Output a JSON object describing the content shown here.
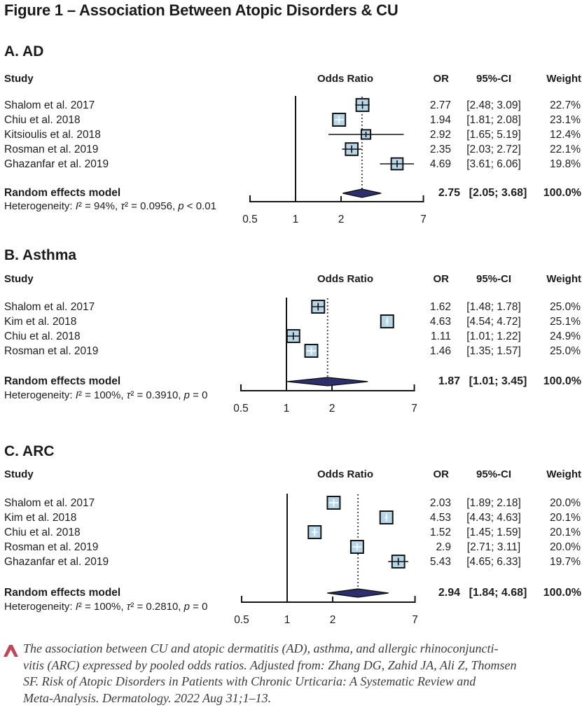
{
  "figure_title": "Figure 1 – Association Between Atopic Disorders & CU",
  "columns": {
    "study": "Study",
    "odds_ratio": "Odds Ratio",
    "or": "OR",
    "ci": "95%-CI",
    "weight": "Weight"
  },
  "chart_data": [
    {
      "type": "forest",
      "title": "A. AD",
      "xscale": "log",
      "xlim": [
        0.5,
        7
      ],
      "xticks": [
        0.5,
        1,
        2,
        7
      ],
      "ref_line": 1,
      "studies": [
        {
          "name": "Shalom et al. 2017",
          "or": 2.77,
          "ci_low": 2.48,
          "ci_high": 3.09,
          "weight": 22.7,
          "or_text": "2.77",
          "ci_text": "[2.48; 3.09]",
          "weight_text": "22.7%"
        },
        {
          "name": "Chiu et al. 2018",
          "or": 1.94,
          "ci_low": 1.81,
          "ci_high": 2.08,
          "weight": 23.1,
          "or_text": "1.94",
          "ci_text": "[1.81; 2.08]",
          "weight_text": "23.1%"
        },
        {
          "name": "Kitsioulis et al. 2018",
          "or": 2.92,
          "ci_low": 1.65,
          "ci_high": 5.19,
          "weight": 12.4,
          "or_text": "2.92",
          "ci_text": "[1.65; 5.19]",
          "weight_text": "12.4%"
        },
        {
          "name": "Rosman et al. 2019",
          "or": 2.35,
          "ci_low": 2.03,
          "ci_high": 2.72,
          "weight": 22.1,
          "or_text": "2.35",
          "ci_text": "[2.03; 2.72]",
          "weight_text": "22.1%"
        },
        {
          "name": "Ghazanfar et al. 2019",
          "or": 4.69,
          "ci_low": 3.61,
          "ci_high": 6.06,
          "weight": 19.8,
          "or_text": "4.69",
          "ci_text": "[3.61; 6.06]",
          "weight_text": "19.8%"
        }
      ],
      "summary": {
        "label": "Random effects model",
        "or": 2.75,
        "ci_low": 2.05,
        "ci_high": 3.68,
        "or_text": "2.75",
        "ci_text": "[2.05; 3.68]",
        "weight_text": "100.0%"
      },
      "heterogeneity": "Heterogeneity: I² = 94%, τ² = 0.0956, p < 0.01"
    },
    {
      "type": "forest",
      "title": "B. Asthma",
      "xscale": "log",
      "xlim": [
        0.5,
        7
      ],
      "xticks": [
        0.5,
        1,
        2,
        7
      ],
      "ref_line": 1,
      "studies": [
        {
          "name": "Shalom et al. 2017",
          "or": 1.62,
          "ci_low": 1.48,
          "ci_high": 1.78,
          "weight": 25.0,
          "or_text": "1.62",
          "ci_text": "[1.48; 1.78]",
          "weight_text": "25.0%"
        },
        {
          "name": "Kim et al. 2018",
          "or": 4.63,
          "ci_low": 4.54,
          "ci_high": 4.72,
          "weight": 25.1,
          "or_text": "4.63",
          "ci_text": "[4.54; 4.72]",
          "weight_text": "25.1%"
        },
        {
          "name": "Chiu et al. 2018",
          "or": 1.11,
          "ci_low": 1.01,
          "ci_high": 1.22,
          "weight": 24.9,
          "or_text": "1.11",
          "ci_text": "[1.01; 1.22]",
          "weight_text": "24.9%"
        },
        {
          "name": "Rosman et al. 2019",
          "or": 1.46,
          "ci_low": 1.35,
          "ci_high": 1.57,
          "weight": 25.0,
          "or_text": "1.46",
          "ci_text": "[1.35; 1.57]",
          "weight_text": "25.0%"
        }
      ],
      "summary": {
        "label": "Random effects model",
        "or": 1.87,
        "ci_low": 1.01,
        "ci_high": 3.45,
        "or_text": "1.87",
        "ci_text": "[1.01; 3.45]",
        "weight_text": "100.0%"
      },
      "heterogeneity": "Heterogeneity: I² = 100%, τ² = 0.3910, p = 0"
    },
    {
      "type": "forest",
      "title": "C. ARC",
      "xscale": "log",
      "xlim": [
        0.5,
        7
      ],
      "xticks": [
        0.5,
        1,
        2,
        7
      ],
      "ref_line": 1,
      "studies": [
        {
          "name": "Shalom et al. 2017",
          "or": 2.03,
          "ci_low": 1.89,
          "ci_high": 2.18,
          "weight": 20.0,
          "or_text": "2.03",
          "ci_text": "[1.89; 2.18]",
          "weight_text": "20.0%"
        },
        {
          "name": "Kim et al. 2018",
          "or": 4.53,
          "ci_low": 4.43,
          "ci_high": 4.63,
          "weight": 20.1,
          "or_text": "4.53",
          "ci_text": "[4.43; 4.63]",
          "weight_text": "20.1%"
        },
        {
          "name": "Chiu et al. 2018",
          "or": 1.52,
          "ci_low": 1.45,
          "ci_high": 1.59,
          "weight": 20.1,
          "or_text": "1.52",
          "ci_text": "[1.45; 1.59]",
          "weight_text": "20.1%"
        },
        {
          "name": "Rosman et al. 2019",
          "or": 2.9,
          "ci_low": 2.71,
          "ci_high": 3.11,
          "weight": 20.0,
          "or_text": "2.9",
          "ci_text": "[2.71; 3.11]",
          "weight_text": "20.0%"
        },
        {
          "name": "Ghazanfar et al. 2019",
          "or": 5.43,
          "ci_low": 4.65,
          "ci_high": 6.33,
          "weight": 19.7,
          "or_text": "5.43",
          "ci_text": "[4.65; 6.33]",
          "weight_text": "19.7%"
        }
      ],
      "summary": {
        "label": "Random effects model",
        "or": 2.94,
        "ci_low": 1.84,
        "ci_high": 4.68,
        "or_text": "2.94",
        "ci_text": "[1.84; 4.68]",
        "weight_text": "100.0%"
      },
      "heterogeneity": "Heterogeneity: I² = 100%, τ² = 0.2810, p = 0"
    }
  ],
  "caption": {
    "lines": [
      "The association between CU and atopic dermatitis (AD), asthma, and allergic rhinoconjuncti-",
      "vitis (ARC) expressed by pooled odds ratios. Adjusted from: Zhang DG, Zahid JA, Ali Z, Thomsen",
      "SF. Risk of Atopic Disorders in Patients with Chronic Urticaria: A Systematic Review and",
      "Meta-Analysis. Dermatology. 2022 Aug 31;1–13."
    ]
  },
  "colors": {
    "square_fill": "#b7d7e8",
    "square_stroke": "#141414",
    "diamond_fill": "#2c2f6b",
    "line": "#141414",
    "accent_arrow": "#c14459",
    "text": "#1d1d1f",
    "caption_text": "#3b3b3d"
  }
}
